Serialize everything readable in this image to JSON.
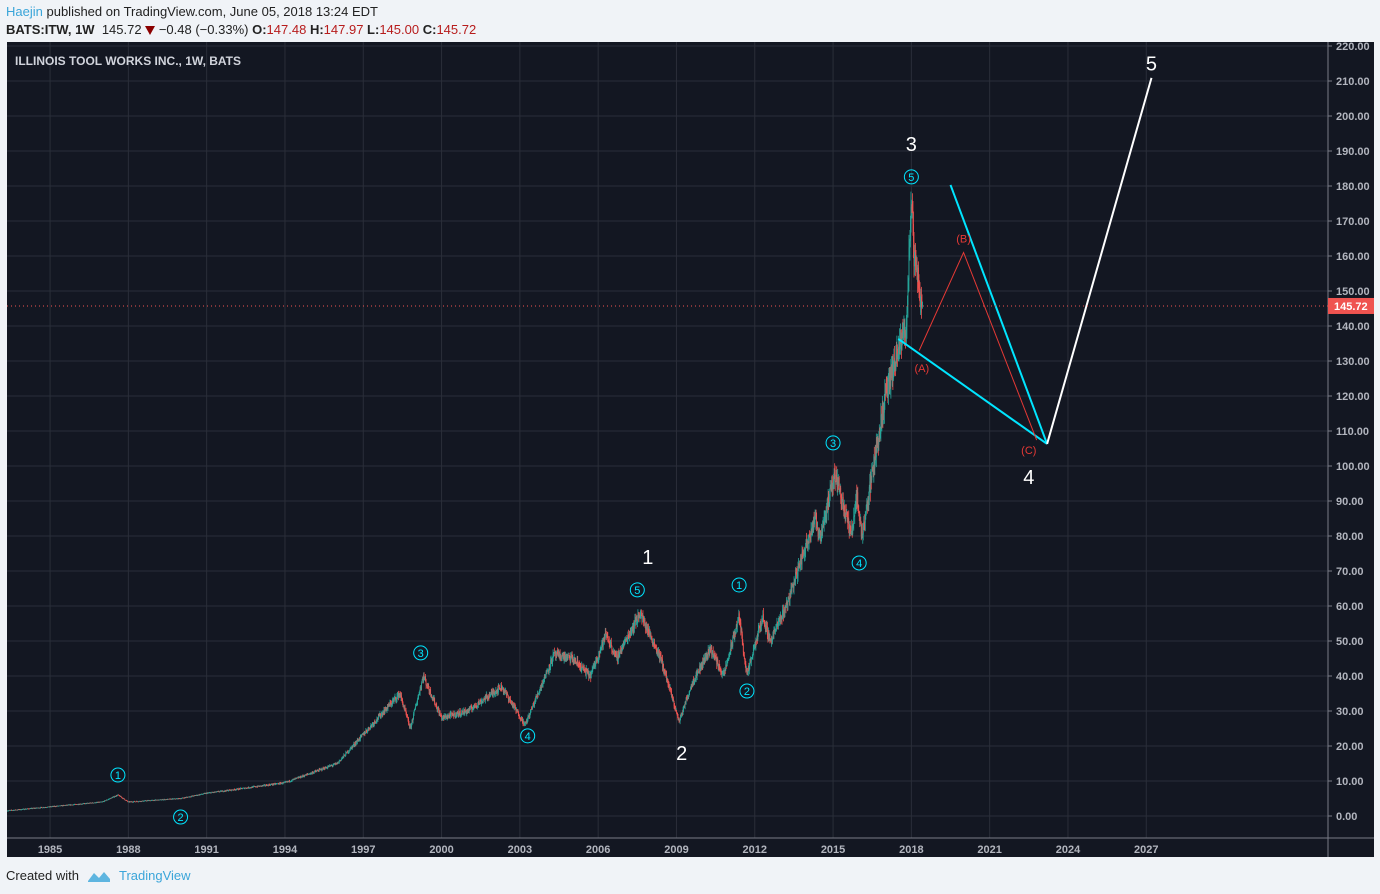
{
  "header": {
    "user": "Haejin",
    "published_text": "published on TradingView.com, June 05, 2018 13:24 EDT",
    "symbol": "BATS:ITW, 1W",
    "last": "145.72",
    "change": "−0.48 (−0.33%)",
    "o_label": "O:",
    "o": "147.48",
    "h_label": "H:",
    "h": "147.97",
    "l_label": "L:",
    "l": "145.00",
    "c_label": "C:",
    "c": "145.72"
  },
  "footer": {
    "created_with": "Created with",
    "brand": "TradingView"
  },
  "colors": {
    "up": "#26a69a",
    "down": "#ef5350",
    "bg": "#131722",
    "grid": "#2a2e39",
    "cyan": "#00e5ff",
    "white": "#ffffff",
    "red_line": "#e53935",
    "price_tag": "#ef5350"
  },
  "chart_data": {
    "type": "candlestick",
    "title": "ILLINOIS TOOL WORKS INC., 1W, BATS",
    "ylim": [
      -10,
      222
    ],
    "xlim": [
      1983.35,
      2034.1
    ],
    "y_ticks": [
      "0.00",
      "10.00",
      "20.00",
      "30.00",
      "40.00",
      "50.00",
      "60.00",
      "70.00",
      "80.00",
      "90.00",
      "100.00",
      "110.00",
      "120.00",
      "130.00",
      "140.00",
      "150.00",
      "160.00",
      "170.00",
      "180.00",
      "190.00",
      "200.00",
      "210.00",
      "220.00"
    ],
    "x_ticks": [
      "1985",
      "1988",
      "1991",
      "1994",
      "1997",
      "2000",
      "2003",
      "2006",
      "2009",
      "2012",
      "2015",
      "2018",
      "2021",
      "2024",
      "2027"
    ],
    "last_price_label": "145.72",
    "last_price": 145.72,
    "price_path": [
      [
        1983.35,
        1.5
      ],
      [
        1987,
        4
      ],
      [
        1987.6,
        6
      ],
      [
        1988,
        4
      ],
      [
        1990,
        5
      ],
      [
        1991,
        6.5
      ],
      [
        1994,
        9.5
      ],
      [
        1996,
        15
      ],
      [
        1998.4,
        35
      ],
      [
        1998.8,
        25
      ],
      [
        1999.3,
        40
      ],
      [
        2000,
        28
      ],
      [
        2001,
        30
      ],
      [
        2002.3,
        37
      ],
      [
        2003.2,
        26
      ],
      [
        2004.3,
        46
      ],
      [
        2005,
        45
      ],
      [
        2005.7,
        40
      ],
      [
        2006.3,
        52
      ],
      [
        2006.7,
        45
      ],
      [
        2007.6,
        58
      ],
      [
        2008.4,
        45
      ],
      [
        2009.1,
        27
      ],
      [
        2009.6,
        38
      ],
      [
        2010.3,
        48
      ],
      [
        2010.8,
        40
      ],
      [
        2011.4,
        57
      ],
      [
        2011.7,
        40
      ],
      [
        2012.3,
        57
      ],
      [
        2012.6,
        50
      ],
      [
        2013.2,
        60
      ],
      [
        2014.3,
        85
      ],
      [
        2014.5,
        80
      ],
      [
        2015.1,
        98
      ],
      [
        2015.7,
        80
      ],
      [
        2015.9,
        92
      ],
      [
        2016.1,
        80
      ],
      [
        2017,
        120
      ],
      [
        2017.8,
        140
      ],
      [
        2018.0,
        175
      ],
      [
        2018.1,
        160
      ],
      [
        2018.43,
        145.72
      ]
    ],
    "annotations": [
      {
        "text": "1",
        "style": "circle",
        "x": 1987.6,
        "y": 11.7
      },
      {
        "text": "2",
        "style": "circle",
        "x": 1990.0,
        "y": -0.3
      },
      {
        "text": "3",
        "style": "circle",
        "x": 1999.2,
        "y": 46.6
      },
      {
        "text": "4",
        "style": "circle",
        "x": 2003.3,
        "y": 22.9
      },
      {
        "text": "5",
        "style": "circle",
        "x": 2007.5,
        "y": 64.6
      },
      {
        "text": "1",
        "style": "big",
        "x": 2007.9,
        "y": 74
      },
      {
        "text": "2",
        "style": "big",
        "x": 2009.2,
        "y": 18
      },
      {
        "text": "1",
        "style": "circle",
        "x": 2011.4,
        "y": 66
      },
      {
        "text": "2",
        "style": "circle",
        "x": 2011.7,
        "y": 35.7
      },
      {
        "text": "3",
        "style": "circle",
        "x": 2015.0,
        "y": 106.6
      },
      {
        "text": "4",
        "style": "circle",
        "x": 2016.0,
        "y": 72.3
      },
      {
        "text": "5",
        "style": "circle",
        "x": 2018.0,
        "y": 182.6
      },
      {
        "text": "3",
        "style": "big",
        "x": 2018.0,
        "y": 192
      },
      {
        "text": "4",
        "style": "big",
        "x": 2022.5,
        "y": 96.9
      },
      {
        "text": "5",
        "style": "big",
        "x": 2027.2,
        "y": 215
      },
      {
        "text": "(A)",
        "style": "red",
        "x": 2018.4,
        "y": 128
      },
      {
        "text": "(B)",
        "style": "red",
        "x": 2020.0,
        "y": 165
      },
      {
        "text": "(C)",
        "style": "red",
        "x": 2022.5,
        "y": 104.6
      }
    ],
    "lines": [
      {
        "color": "cyan",
        "points": [
          [
            2017.5,
            136.3
          ],
          [
            2023.2,
            106.3
          ]
        ]
      },
      {
        "color": "cyan",
        "points": [
          [
            2019.5,
            180.3
          ],
          [
            2023.2,
            106.3
          ]
        ]
      },
      {
        "color": "white",
        "points": [
          [
            2023.2,
            106.3
          ],
          [
            2027.2,
            210.9
          ]
        ]
      },
      {
        "color": "red_line",
        "points": [
          [
            2018.3,
            133
          ],
          [
            2020.0,
            161
          ],
          [
            2022.8,
            107.4
          ]
        ]
      }
    ]
  }
}
